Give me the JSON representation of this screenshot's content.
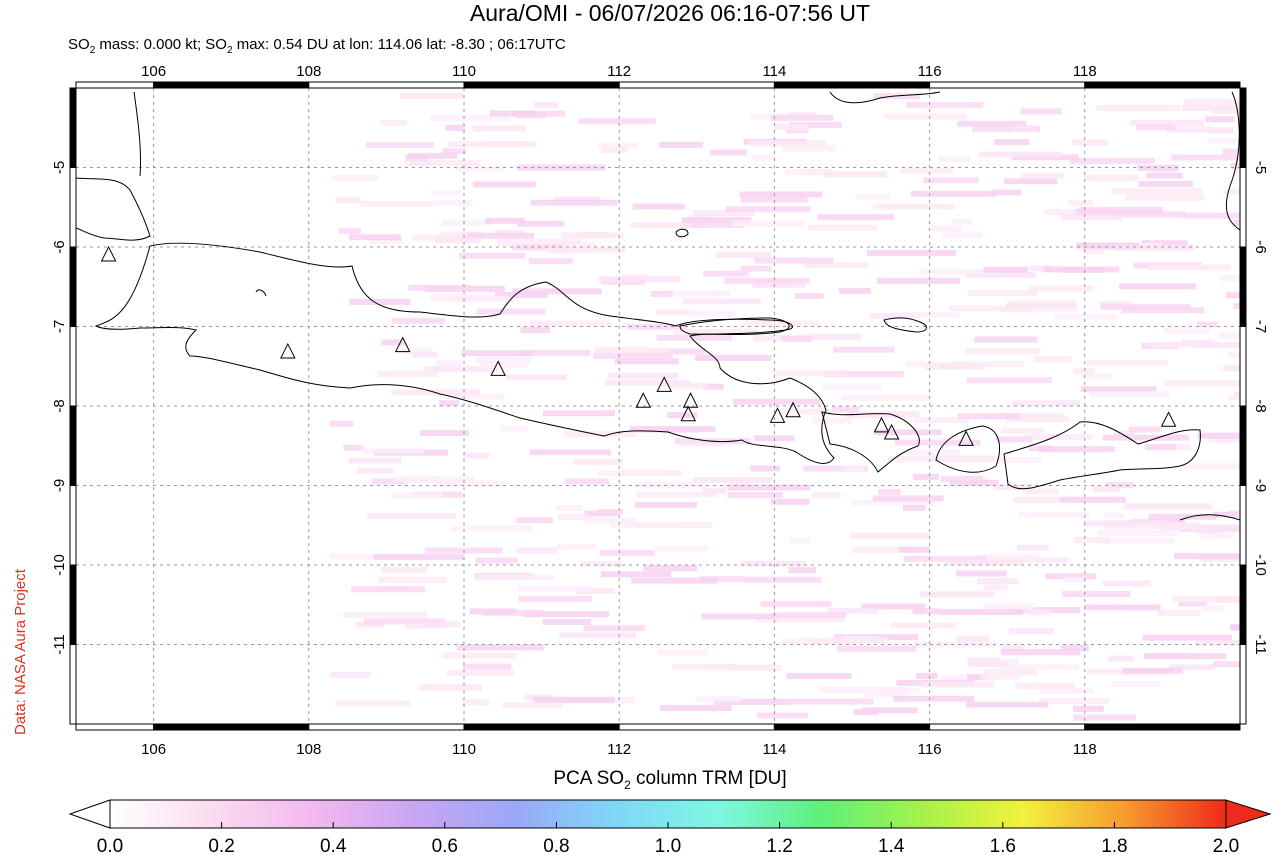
{
  "title": "Aura/OMI - 06/07/2026 06:16-07:56 UT",
  "subtitle": {
    "prefix": "SO",
    "sub1": "2",
    "middle": " mass: 0.000 kt; SO",
    "sub2": "2",
    "suffix": " max: 0.54 DU at lon: 114.06 lat: -8.30 ; 06:17UTC"
  },
  "credit": "Data: NASA Aura Project",
  "map": {
    "lon_range": [
      105,
      120
    ],
    "lat_range": [
      -12,
      -4
    ],
    "lon_ticks": [
      "106",
      "108",
      "110",
      "112",
      "114",
      "116",
      "118"
    ],
    "lat_ticks": [
      "-5",
      "-6",
      "-7",
      "-8",
      "-9",
      "-10",
      "-11"
    ],
    "volcanoes": [
      {
        "lon": 105.42,
        "lat": -6.1
      },
      {
        "lon": 107.73,
        "lat": -7.32
      },
      {
        "lon": 109.21,
        "lat": -7.24
      },
      {
        "lon": 110.44,
        "lat": -7.54
      },
      {
        "lon": 112.31,
        "lat": -7.94
      },
      {
        "lon": 112.58,
        "lat": -7.74
      },
      {
        "lon": 112.92,
        "lat": -7.94
      },
      {
        "lon": 112.89,
        "lat": -8.11
      },
      {
        "lon": 114.04,
        "lat": -8.13
      },
      {
        "lon": 114.24,
        "lat": -8.06
      },
      {
        "lon": 115.38,
        "lat": -8.25
      },
      {
        "lon": 115.51,
        "lat": -8.34
      },
      {
        "lon": 116.47,
        "lat": -8.42
      },
      {
        "lon": 119.08,
        "lat": -8.18
      }
    ]
  },
  "colorbar": {
    "title_prefix": "PCA SO",
    "title_sub": "2",
    "title_suffix": " column TRM [DU]",
    "tick_labels": [
      "0.0",
      "0.2",
      "0.4",
      "0.6",
      "0.8",
      "1.0",
      "1.2",
      "1.4",
      "1.6",
      "1.8",
      "2.0"
    ],
    "range": [
      0,
      2
    ],
    "colors": [
      "#ffffff",
      "#fbdcef",
      "#f3b8f0",
      "#c9a5f2",
      "#9aa8f7",
      "#7fd8f7",
      "#7ff7e3",
      "#5ef07a",
      "#a4f24a",
      "#f2f23c",
      "#f79b2e",
      "#ef2a1a"
    ]
  }
}
